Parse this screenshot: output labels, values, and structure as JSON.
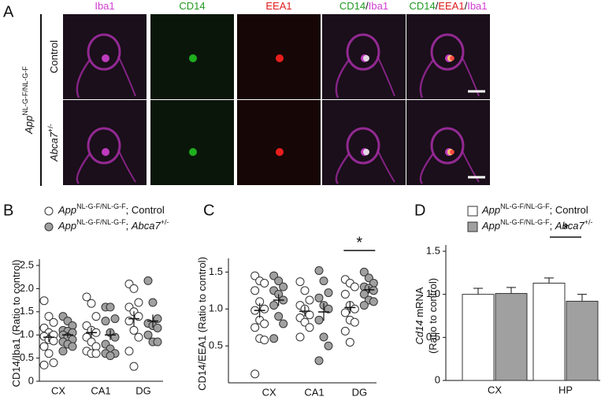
{
  "panel_a": {
    "letter": "A",
    "channels": [
      [
        {
          "text": "Iba1",
          "color": "#d23cd2"
        }
      ],
      [
        {
          "text": "CD14",
          "color": "#1f9a1f"
        }
      ],
      [
        {
          "text": "EEA1",
          "color": "#e01b1b"
        }
      ],
      [
        {
          "text": "CD14",
          "color": "#1f9a1f"
        },
        {
          "text": "/",
          "color": "#111111"
        },
        {
          "text": "Iba1",
          "color": "#d23cd2"
        }
      ],
      [
        {
          "text": "CD14",
          "color": "#1f9a1f"
        },
        {
          "text": "/",
          "color": "#111111"
        },
        {
          "text": "EEA1",
          "color": "#e01b1b"
        },
        {
          "text": "/",
          "color": "#111111"
        },
        {
          "text": "Iba1",
          "color": "#d23cd2"
        }
      ]
    ],
    "rows": [
      [
        {
          "text": "Control"
        }
      ],
      [
        {
          "text": "Abca7",
          "italic": true
        },
        {
          "text": "+/-",
          "sup": true
        }
      ]
    ],
    "genotype": [
      {
        "text": "App",
        "italic": true
      },
      {
        "text": "NL-G-F/NL-G-F",
        "sup": true
      }
    ]
  },
  "chart_data": [
    {
      "type": "strip",
      "letter": "B",
      "y_label": [
        [
          {
            "text": "CD14/Iba1 (Ratio to control)"
          }
        ]
      ],
      "categories": [
        "CX",
        "CA1",
        "DG"
      ],
      "series": [
        {
          "name": [
            {
              "text": "App",
              "italic": true
            },
            {
              "text": "NL-G-F/NL-G-F",
              "sup": true
            },
            {
              "text": "; Control"
            }
          ],
          "color": "#ffffff",
          "values": [
            [
              1.74,
              1.4,
              1.27,
              1.15,
              1.05,
              1.0,
              0.97,
              0.9,
              0.87,
              0.75,
              0.6,
              0.4,
              0.35
            ],
            [
              1.82,
              1.68,
              1.4,
              1.2,
              1.1,
              1.05,
              0.95,
              0.85,
              0.75,
              0.65,
              0.6,
              0.6
            ],
            [
              2.1,
              2.0,
              1.7,
              1.6,
              1.5,
              1.4,
              1.3,
              1.1,
              0.95,
              0.65,
              0.32
            ]
          ],
          "means": [
            0.95,
            1.05,
            1.35
          ],
          "errors": [
            0.1,
            0.11,
            0.16
          ]
        },
        {
          "name": [
            {
              "text": "App",
              "italic": true
            },
            {
              "text": "NL-G-F/NL-G-F",
              "sup": true
            },
            {
              "text": "; "
            },
            {
              "text": "Abca7",
              "italic": true
            },
            {
              "text": "+/-",
              "sup": true
            }
          ],
          "color": "#a0a0a0",
          "values": [
            [
              1.4,
              1.3,
              1.2,
              1.1,
              1.08,
              1.05,
              1.0,
              0.95,
              0.9,
              0.85,
              0.8,
              0.75,
              0.65
            ],
            [
              1.6,
              1.6,
              1.35,
              1.3,
              1.05,
              0.95,
              0.8,
              0.7,
              0.6,
              0.6,
              0.55
            ],
            [
              2.17,
              1.7,
              1.35,
              1.25,
              1.2,
              1.15,
              1.0,
              0.85,
              0.85
            ]
          ],
          "means": [
            1.0,
            1.0,
            1.3
          ],
          "errors": [
            0.06,
            0.11,
            0.14
          ]
        }
      ],
      "ylim": [
        0,
        2.5
      ],
      "yticks": [
        0,
        0.5,
        {
          "value": 1,
          "label": "1.0"
        },
        1.5,
        {
          "value": 2,
          "label": "2.0"
        },
        2.5
      ],
      "annotations": []
    },
    {
      "type": "strip",
      "letter": "C",
      "y_label": [
        [
          {
            "text": "CD14/EEA1 (Ratio to control)"
          }
        ]
      ],
      "categories": [
        "CX",
        "CA1",
        "DG"
      ],
      "series": [
        {
          "name": null,
          "color": "#ffffff",
          "values": [
            [
              1.45,
              1.38,
              1.35,
              1.25,
              1.1,
              1.0,
              0.98,
              0.85,
              0.8,
              0.75,
              0.6,
              0.58,
              0.12
            ],
            [
              1.37,
              1.25,
              1.12,
              1.05,
              1.0,
              0.92,
              0.88,
              0.82,
              0.75,
              0.62
            ],
            [
              1.4,
              1.35,
              1.3,
              1.2,
              1.05,
              1.0,
              0.95,
              0.85,
              0.82,
              0.7,
              0.55
            ]
          ],
          "means": [
            0.98,
            0.97,
            1.02
          ],
          "errors": [
            0.1,
            0.07,
            0.08
          ]
        },
        {
          "name": null,
          "color": "#a0a0a0",
          "values": [
            [
              1.45,
              1.38,
              1.3,
              1.25,
              1.2,
              1.12,
              1.05,
              0.9,
              0.8,
              0.6
            ],
            [
              1.52,
              1.38,
              1.22,
              1.15,
              1.05,
              1.0,
              0.85,
              0.62,
              0.5,
              0.3
            ],
            [
              1.5,
              1.42,
              1.35,
              1.3,
              1.28,
              1.25,
              1.2,
              1.12,
              1.1,
              1.05
            ]
          ],
          "means": [
            1.12,
            0.96,
            1.26
          ],
          "errors": [
            0.08,
            0.12,
            0.05
          ]
        }
      ],
      "ylim": [
        0,
        1.6
      ],
      "yticks": [
        0.5,
        {
          "value": 1,
          "label": "1.0"
        },
        1.5
      ],
      "annotations": [
        {
          "text": "*",
          "category": 2
        }
      ]
    },
    {
      "type": "bar",
      "letter": "D",
      "y_label": [
        [
          {
            "text": "Cd14",
            "italic": true
          },
          {
            "text": " mRNA"
          }
        ],
        [
          {
            "text": "(Ratio to control)"
          }
        ]
      ],
      "categories": [
        "CX",
        "HP"
      ],
      "series": [
        {
          "name": [
            {
              "text": "App",
              "italic": true
            },
            {
              "text": "NL-G-F/NL-G-F",
              "sup": true
            },
            {
              "text": "; Control"
            }
          ],
          "color": "#ffffff",
          "values": [
            1.0,
            1.13
          ],
          "errors": [
            0.07,
            0.06
          ]
        },
        {
          "name": [
            {
              "text": "App",
              "italic": true
            },
            {
              "text": "NL-G-F/NL-G-F",
              "sup": true
            },
            {
              "text": "; "
            },
            {
              "text": "Abca7",
              "italic": true
            },
            {
              "text": "+/-",
              "sup": true
            }
          ],
          "color": "#a0a0a0",
          "values": [
            1.01,
            0.92
          ],
          "errors": [
            0.07,
            0.08
          ]
        }
      ],
      "ylim": [
        0,
        1.5
      ],
      "yticks": [
        0,
        0.5,
        {
          "value": 1,
          "label": "1.0"
        },
        1.5
      ],
      "annotations": [
        {
          "text": "*",
          "category": 1
        }
      ]
    }
  ]
}
